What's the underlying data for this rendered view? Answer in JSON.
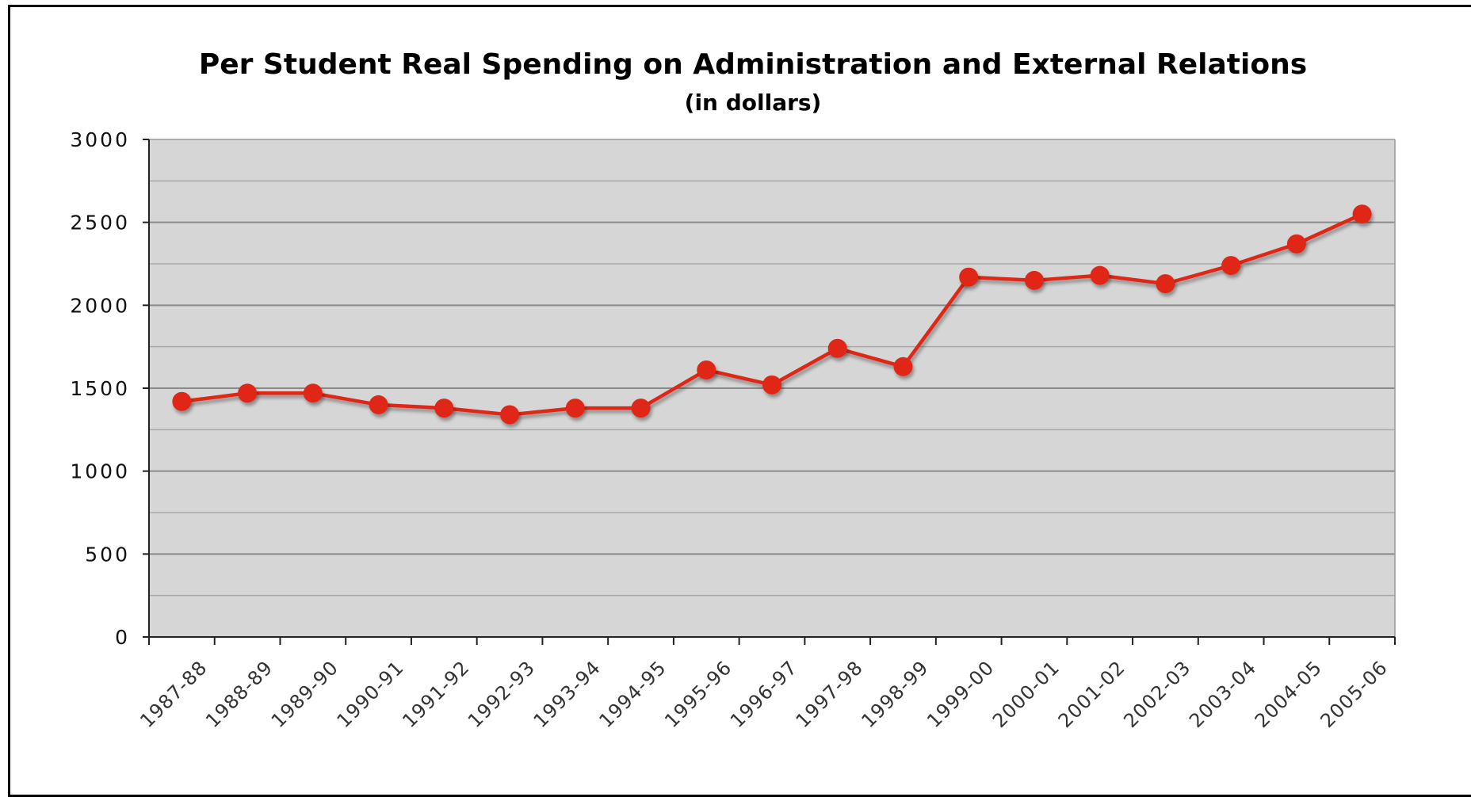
{
  "chart_data": {
    "type": "line",
    "title": "Per Student Real Spending on Administration and External Relations",
    "subtitle": "(in dollars)",
    "xlabel": "",
    "ylabel": "",
    "ylim": [
      0,
      3000
    ],
    "y_ticks": [
      "0",
      "500",
      "1000",
      "1500",
      "2000",
      "2500",
      "3000"
    ],
    "grid": "horizontal",
    "legend": "none",
    "plot_background": "#d6d6d6",
    "line_color": "#e02814",
    "categories": [
      "1987-88",
      "1988-89",
      "1989-90",
      "1990-91",
      "1991-92",
      "1992-93",
      "1993-94",
      "1994-95",
      "1995-96",
      "1996-97",
      "1997-98",
      "1998-99",
      "1999-00",
      "2000-01",
      "2001-02",
      "2002-03",
      "2003-04",
      "2004-05",
      "2005-06"
    ],
    "series": [
      {
        "values": [
          1420,
          1470,
          1470,
          1400,
          1380,
          1340,
          1380,
          1380,
          1610,
          1520,
          1740,
          1630,
          2170,
          2150,
          2180,
          2130,
          2240,
          2370,
          2550
        ]
      }
    ]
  }
}
